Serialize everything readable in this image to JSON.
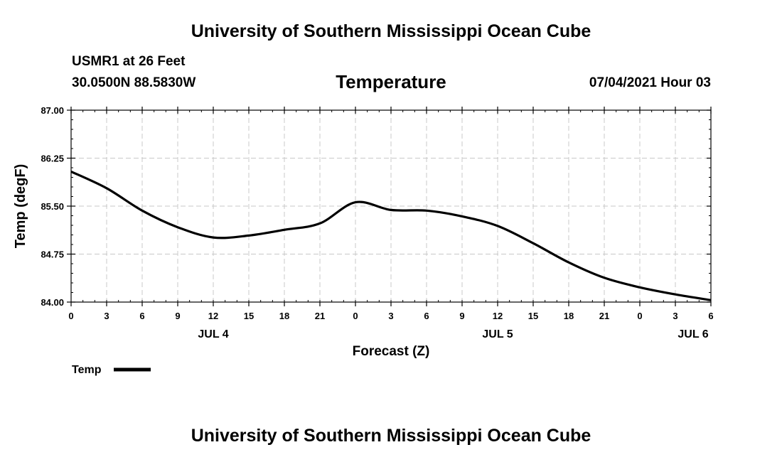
{
  "header": {
    "title": "University of Southern Mississippi Ocean Cube",
    "station": "USMR1 at 26 Feet",
    "coords": "30.0500N  88.5830W",
    "datetime": "07/04/2021 Hour 03"
  },
  "footer": {
    "title": "University of Southern Mississippi Ocean Cube"
  },
  "chart_data": {
    "type": "line",
    "title": "Temperature",
    "xlabel": "Forecast (Z)",
    "ylabel": "Temp (degF)",
    "ylim": [
      84.0,
      87.0
    ],
    "xlim": [
      0,
      54
    ],
    "yticks": [
      "84.00",
      "84.75",
      "85.50",
      "86.25",
      "87.00"
    ],
    "yticks_values": [
      84.0,
      84.75,
      85.5,
      86.25,
      87.0
    ],
    "xticks": [
      "0",
      "3",
      "6",
      "9",
      "12",
      "15",
      "18",
      "21",
      "0",
      "3",
      "6",
      "9",
      "12",
      "15",
      "18",
      "21",
      "0",
      "3",
      "6"
    ],
    "date_labels": [
      {
        "label": "JUL 4",
        "x": 12
      },
      {
        "label": "JUL 5",
        "x": 36
      },
      {
        "label": "JUL 6",
        "x": 52.5
      }
    ],
    "grid": true,
    "legend": {
      "placement": "bottom-left",
      "entries": [
        {
          "label": "Temp",
          "color": "#000000"
        }
      ]
    },
    "series": [
      {
        "name": "Temp",
        "color": "#000000",
        "x": [
          0,
          3,
          6,
          9,
          12,
          15,
          18,
          21,
          24,
          27,
          30,
          33,
          36,
          39,
          42,
          45,
          48,
          51,
          54
        ],
        "values": [
          86.04,
          85.78,
          85.43,
          85.17,
          85.01,
          85.04,
          85.13,
          85.23,
          85.56,
          85.44,
          85.43,
          85.34,
          85.19,
          84.92,
          84.62,
          84.38,
          84.23,
          84.12,
          84.03
        ]
      }
    ]
  }
}
